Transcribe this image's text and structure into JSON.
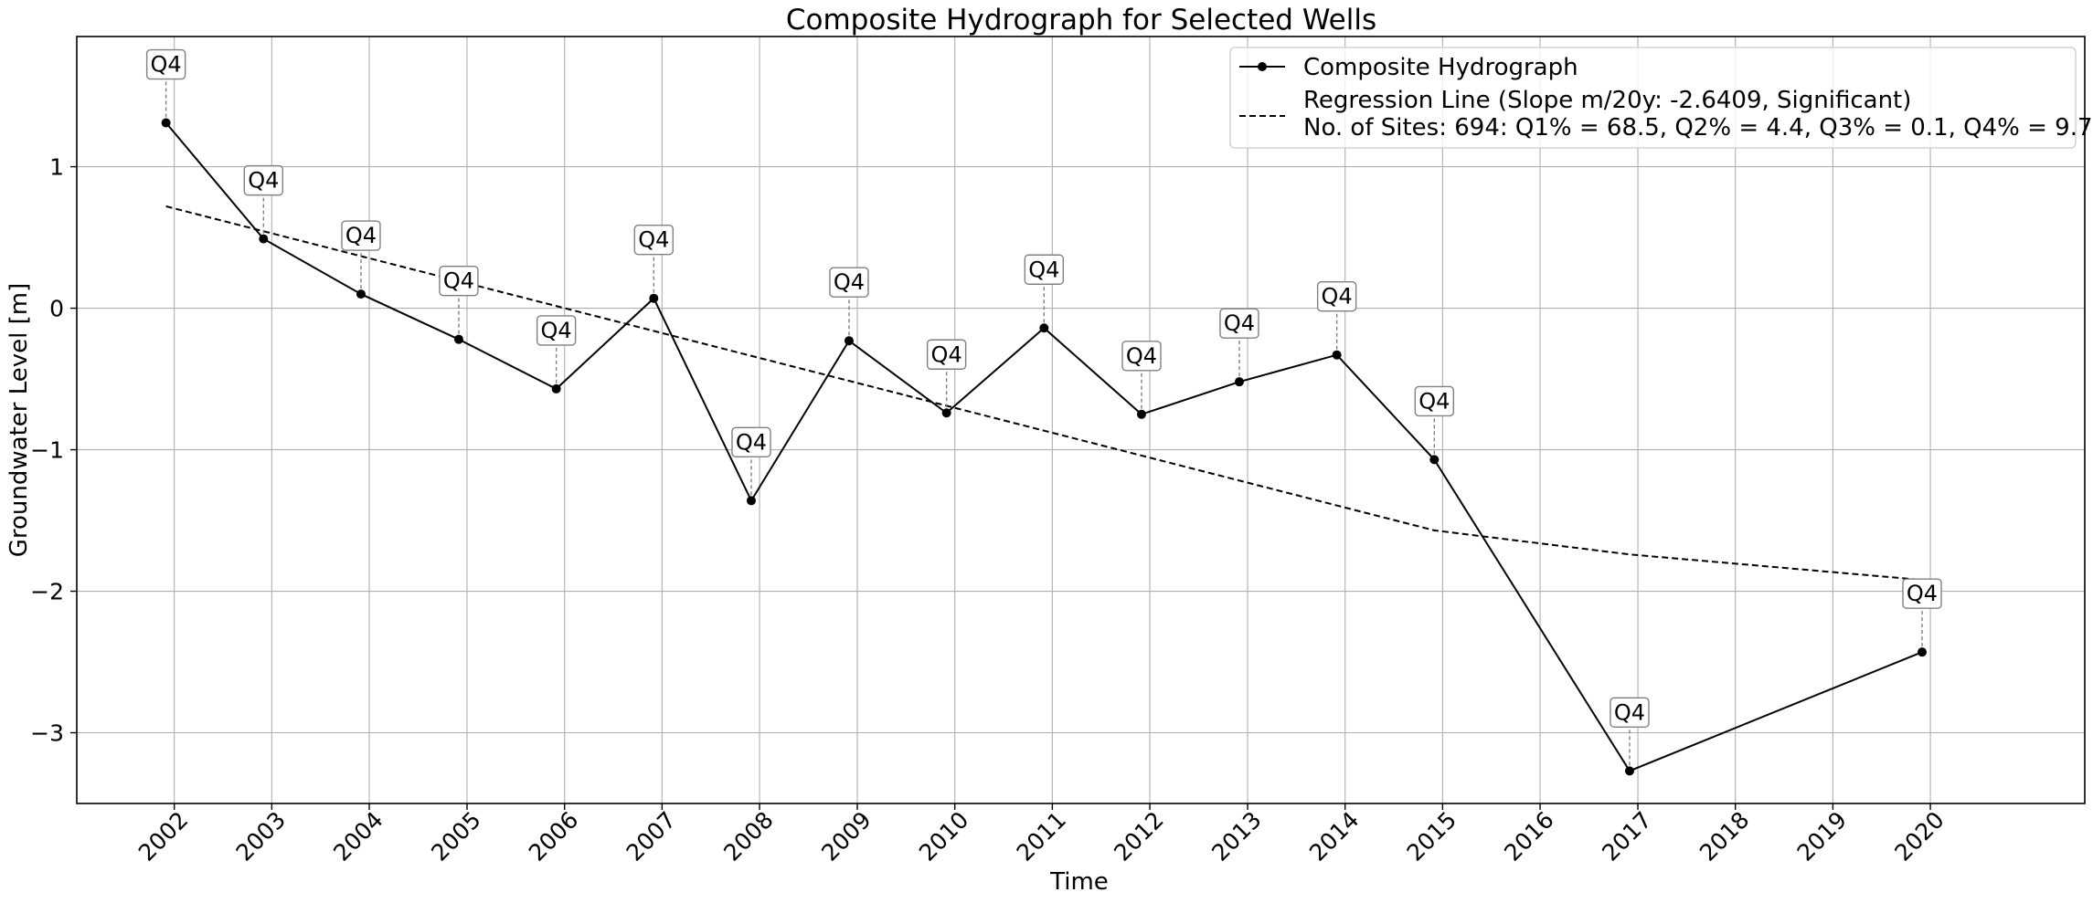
{
  "chart_data": {
    "type": "line",
    "title": "Composite Hydrograph for Selected Wells",
    "xlabel": "Time",
    "ylabel": "Groundwater Level [m]",
    "xlim": [
      "2001-01-01",
      "2021-08-01"
    ],
    "ylim": [
      -3.5,
      1.92
    ],
    "x_ticks": [
      "2002",
      "2003",
      "2004",
      "2005",
      "2006",
      "2007",
      "2008",
      "2009",
      "2010",
      "2011",
      "2012",
      "2013",
      "2014",
      "2015",
      "2016",
      "2017",
      "2018",
      "2019",
      "2020"
    ],
    "y_ticks": [
      1,
      0,
      -1,
      -2,
      -3
    ],
    "y_tick_labels": [
      "1",
      "0",
      "−1",
      "−2",
      "−3"
    ],
    "grid": true,
    "legend_position": "top-right",
    "series": [
      {
        "name": "Composite Hydrograph",
        "style": "solid",
        "marker": "circle",
        "color": "#000000",
        "x": [
          "2001-12-01",
          "2002-12-01",
          "2003-12-01",
          "2004-12-01",
          "2005-12-01",
          "2006-12-01",
          "2007-12-01",
          "2008-12-01",
          "2009-12-01",
          "2010-12-01",
          "2011-12-01",
          "2012-12-01",
          "2013-12-01",
          "2014-12-01",
          "2016-12-01",
          "2019-12-01"
        ],
        "y": [
          1.31,
          0.49,
          0.1,
          -0.22,
          -0.57,
          0.07,
          -1.36,
          -0.23,
          -0.74,
          -0.14,
          -0.75,
          -0.52,
          -0.33,
          -1.07,
          -3.27,
          -2.43
        ],
        "point_labels": [
          "Q4",
          "Q4",
          "Q4",
          "Q4",
          "Q4",
          "Q4",
          "Q4",
          "Q4",
          "Q4",
          "Q4",
          "Q4",
          "Q4",
          "Q4",
          "Q4",
          "Q4",
          "Q4"
        ]
      },
      {
        "name": "Regression Line (Slope m/20y: -2.6409, Significant)",
        "style": "dashed",
        "color": "#000000",
        "x": [
          "2001-12-01",
          "2014-12-01",
          "2016-12-01",
          "2019-12-01"
        ],
        "y": [
          0.72,
          -1.57,
          -1.74,
          -1.92
        ]
      }
    ],
    "legend_entries": [
      "Composite Hydrograph",
      "Regression Line (Slope m/20y: -2.6409, Significant)",
      "No. of Sites: 694: Q1% = 68.5, Q2% = 4.4, Q3% = 0.1, Q4% = 9.7"
    ]
  }
}
